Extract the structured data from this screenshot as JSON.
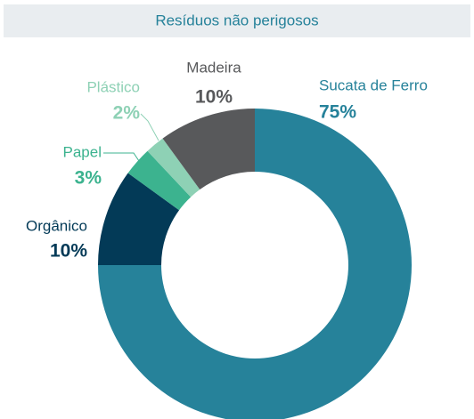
{
  "chart_data": {
    "type": "donut",
    "title": "Resíduos não perigosos",
    "categories": [
      "Sucata de Ferro",
      "Orgânico",
      "Papel",
      "Plástico",
      "Madeira"
    ],
    "values": [
      75,
      10,
      3,
      2,
      10
    ],
    "value_labels": [
      "75%",
      "10%",
      "3%",
      "2%",
      "10%"
    ],
    "colors": [
      "#26829a",
      "#033a57",
      "#3cb38f",
      "#8ed1b5",
      "#58595b"
    ]
  }
}
